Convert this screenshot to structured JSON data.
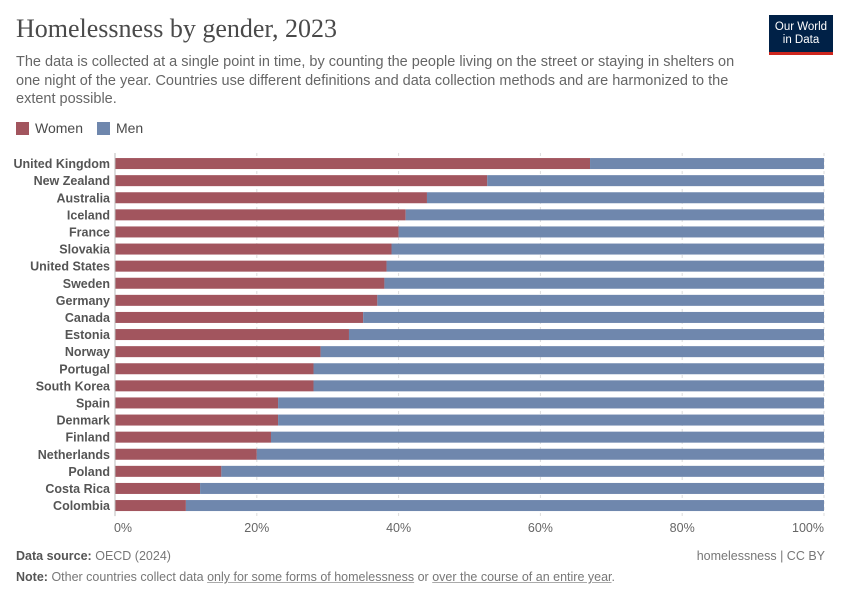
{
  "header": {
    "title": "Homelessness by gender, 2023",
    "subtitle": "The data is collected at a single point in time, by counting the people living on the street or staying in shelters on one night of the year. Countries use different definitions and data collection methods and are harmonized to the extent possible.",
    "logo_line1": "Our World",
    "logo_line2": "in Data"
  },
  "colors": {
    "women": "#a2555e",
    "men": "#6f87ad",
    "logo_bg": "#002147",
    "logo_accent": "#ce261e"
  },
  "legend": {
    "women": "Women",
    "men": "Men"
  },
  "chart_data": {
    "type": "bar",
    "orientation": "horizontal",
    "stacked": "percent",
    "categories": [
      "United Kingdom",
      "New Zealand",
      "Australia",
      "Iceland",
      "France",
      "Slovakia",
      "United States",
      "Sweden",
      "Germany",
      "Canada",
      "Estonia",
      "Norway",
      "Portugal",
      "South Korea",
      "Spain",
      "Denmark",
      "Finland",
      "Netherlands",
      "Poland",
      "Costa Rica",
      "Colombia"
    ],
    "series": [
      {
        "name": "Women",
        "values": [
          67,
          52.5,
          44,
          41,
          40,
          39,
          38.3,
          38,
          37,
          35,
          33,
          29,
          28,
          28,
          23,
          23,
          22,
          20,
          15,
          12,
          10
        ]
      },
      {
        "name": "Men",
        "values": [
          33,
          47.5,
          56,
          59,
          60,
          61,
          61.7,
          62,
          63,
          65,
          67,
          71,
          72,
          72,
          77,
          77,
          78,
          80,
          85,
          88,
          90
        ]
      }
    ],
    "xlim": [
      0,
      100
    ],
    "xticks": [
      "0%",
      "20%",
      "40%",
      "60%",
      "80%",
      "100%"
    ],
    "legend_position": "top-left"
  },
  "footer": {
    "source_label": "Data source:",
    "source_value": "OECD (2024)",
    "credit": "homelessness | CC BY",
    "note_label": "Note:",
    "note_text_1": "Other countries collect data",
    "note_link_1": "only for some forms of homelessness",
    "note_text_2": "or",
    "note_link_2": "over the course of an entire year",
    "note_text_3": "."
  }
}
